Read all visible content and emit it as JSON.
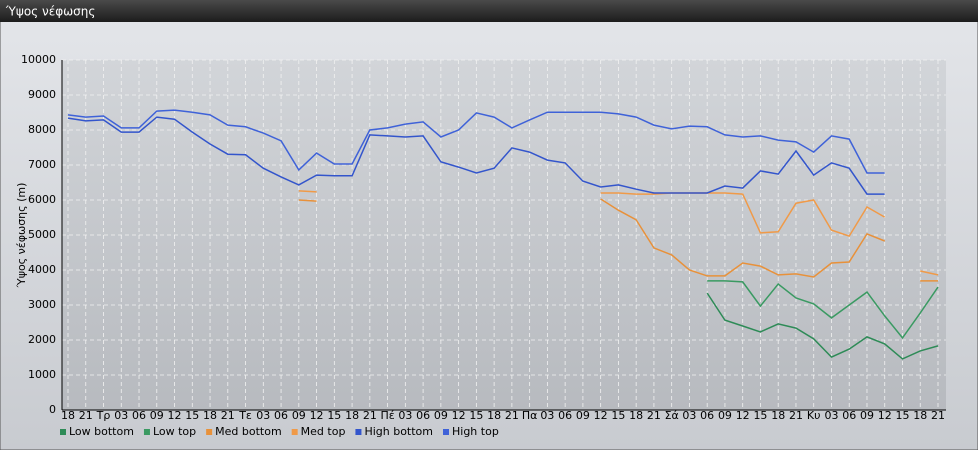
{
  "chart_data": {
    "type": "line",
    "title": "Ύψος νέφωσης",
    "ylabel": "Ύψος νέφωσης (m)",
    "categories": [
      "18",
      "21",
      "Τρ",
      "03",
      "06",
      "09",
      "12",
      "15",
      "18",
      "21",
      "Τε",
      "03",
      "06",
      "09",
      "12",
      "15",
      "18",
      "21",
      "Πέ",
      "03",
      "06",
      "09",
      "12",
      "15",
      "18",
      "21",
      "Πα",
      "03",
      "06",
      "09",
      "12",
      "15",
      "18",
      "21",
      "Σά",
      "03",
      "06",
      "09",
      "12",
      "15",
      "18",
      "21",
      "Κυ",
      "03",
      "06",
      "09",
      "12",
      "15",
      "18",
      "21"
    ],
    "ylim": [
      0,
      10000
    ],
    "yticks": [
      0,
      1000,
      2000,
      3000,
      4000,
      5000,
      6000,
      7000,
      8000,
      9000,
      10000
    ],
    "grid": true,
    "legend": "bottom",
    "series": [
      {
        "name": "Low bottom",
        "color": "#2e8b57",
        "values": [
          null,
          null,
          null,
          null,
          null,
          null,
          null,
          null,
          null,
          null,
          null,
          null,
          null,
          null,
          null,
          null,
          null,
          null,
          null,
          null,
          null,
          null,
          null,
          null,
          null,
          null,
          null,
          null,
          null,
          null,
          null,
          null,
          null,
          null,
          null,
          null,
          3340,
          2570,
          2400,
          2230,
          2460,
          2340,
          2030,
          1510,
          1740,
          2090,
          1890,
          1460,
          1690,
          1830
        ]
      },
      {
        "name": "Low top",
        "color": "#3a9a62",
        "values": [
          null,
          null,
          null,
          null,
          null,
          null,
          null,
          null,
          null,
          null,
          null,
          null,
          null,
          null,
          null,
          null,
          null,
          null,
          null,
          null,
          null,
          null,
          null,
          null,
          null,
          null,
          null,
          null,
          null,
          null,
          null,
          null,
          null,
          null,
          null,
          null,
          3690,
          3690,
          3660,
          2970,
          3600,
          3200,
          3030,
          2630,
          3000,
          3370,
          2690,
          2060,
          2770,
          3510
        ]
      },
      {
        "name": "Med bottom",
        "color": "#e8913a",
        "values": [
          null,
          null,
          null,
          null,
          null,
          null,
          null,
          null,
          null,
          null,
          null,
          null,
          null,
          6000,
          5970,
          null,
          null,
          null,
          null,
          null,
          null,
          null,
          null,
          null,
          null,
          null,
          null,
          null,
          null,
          null,
          6030,
          5710,
          5430,
          4630,
          4430,
          4000,
          3830,
          3830,
          4200,
          4110,
          3860,
          3890,
          3800,
          4200,
          4230,
          5030,
          4830,
          null,
          3690,
          3690
        ]
      },
      {
        "name": "Med top",
        "color": "#f09a48",
        "values": [
          null,
          null,
          null,
          null,
          null,
          null,
          null,
          null,
          null,
          null,
          null,
          null,
          null,
          6260,
          6230,
          null,
          null,
          null,
          null,
          null,
          null,
          null,
          null,
          null,
          null,
          null,
          null,
          null,
          null,
          null,
          6200,
          6200,
          6170,
          6170,
          6200,
          6200,
          6200,
          6200,
          6170,
          5060,
          5090,
          5910,
          6000,
          5140,
          4970,
          5800,
          5510,
          null,
          3970,
          3860
        ]
      },
      {
        "name": "High bottom",
        "color": "#3355cc",
        "values": [
          8340,
          8260,
          8290,
          7940,
          7940,
          8370,
          8310,
          7940,
          7600,
          7310,
          7290,
          6910,
          6660,
          6430,
          6710,
          6690,
          6690,
          7860,
          7830,
          7800,
          7830,
          7090,
          6940,
          6770,
          6910,
          7490,
          7370,
          7140,
          7060,
          6540,
          6370,
          6430,
          6310,
          6200,
          6200,
          6200,
          6200,
          6400,
          6340,
          6830,
          6740,
          7400,
          6710,
          7060,
          6910,
          6170,
          6170,
          null,
          null,
          null
        ]
      },
      {
        "name": "High top",
        "color": "#3f62d8",
        "values": [
          8430,
          8370,
          8400,
          8060,
          8060,
          8540,
          8570,
          8510,
          8430,
          8140,
          8090,
          7910,
          7690,
          6860,
          7340,
          7030,
          7030,
          8000,
          8060,
          8170,
          8230,
          7800,
          8000,
          8490,
          8370,
          8060,
          8290,
          8510,
          8510,
          8510,
          8510,
          8460,
          8370,
          8140,
          8030,
          8110,
          8090,
          7860,
          7800,
          7830,
          7710,
          7660,
          7370,
          7830,
          7740,
          6770,
          6770,
          null,
          null,
          null
        ]
      }
    ]
  }
}
